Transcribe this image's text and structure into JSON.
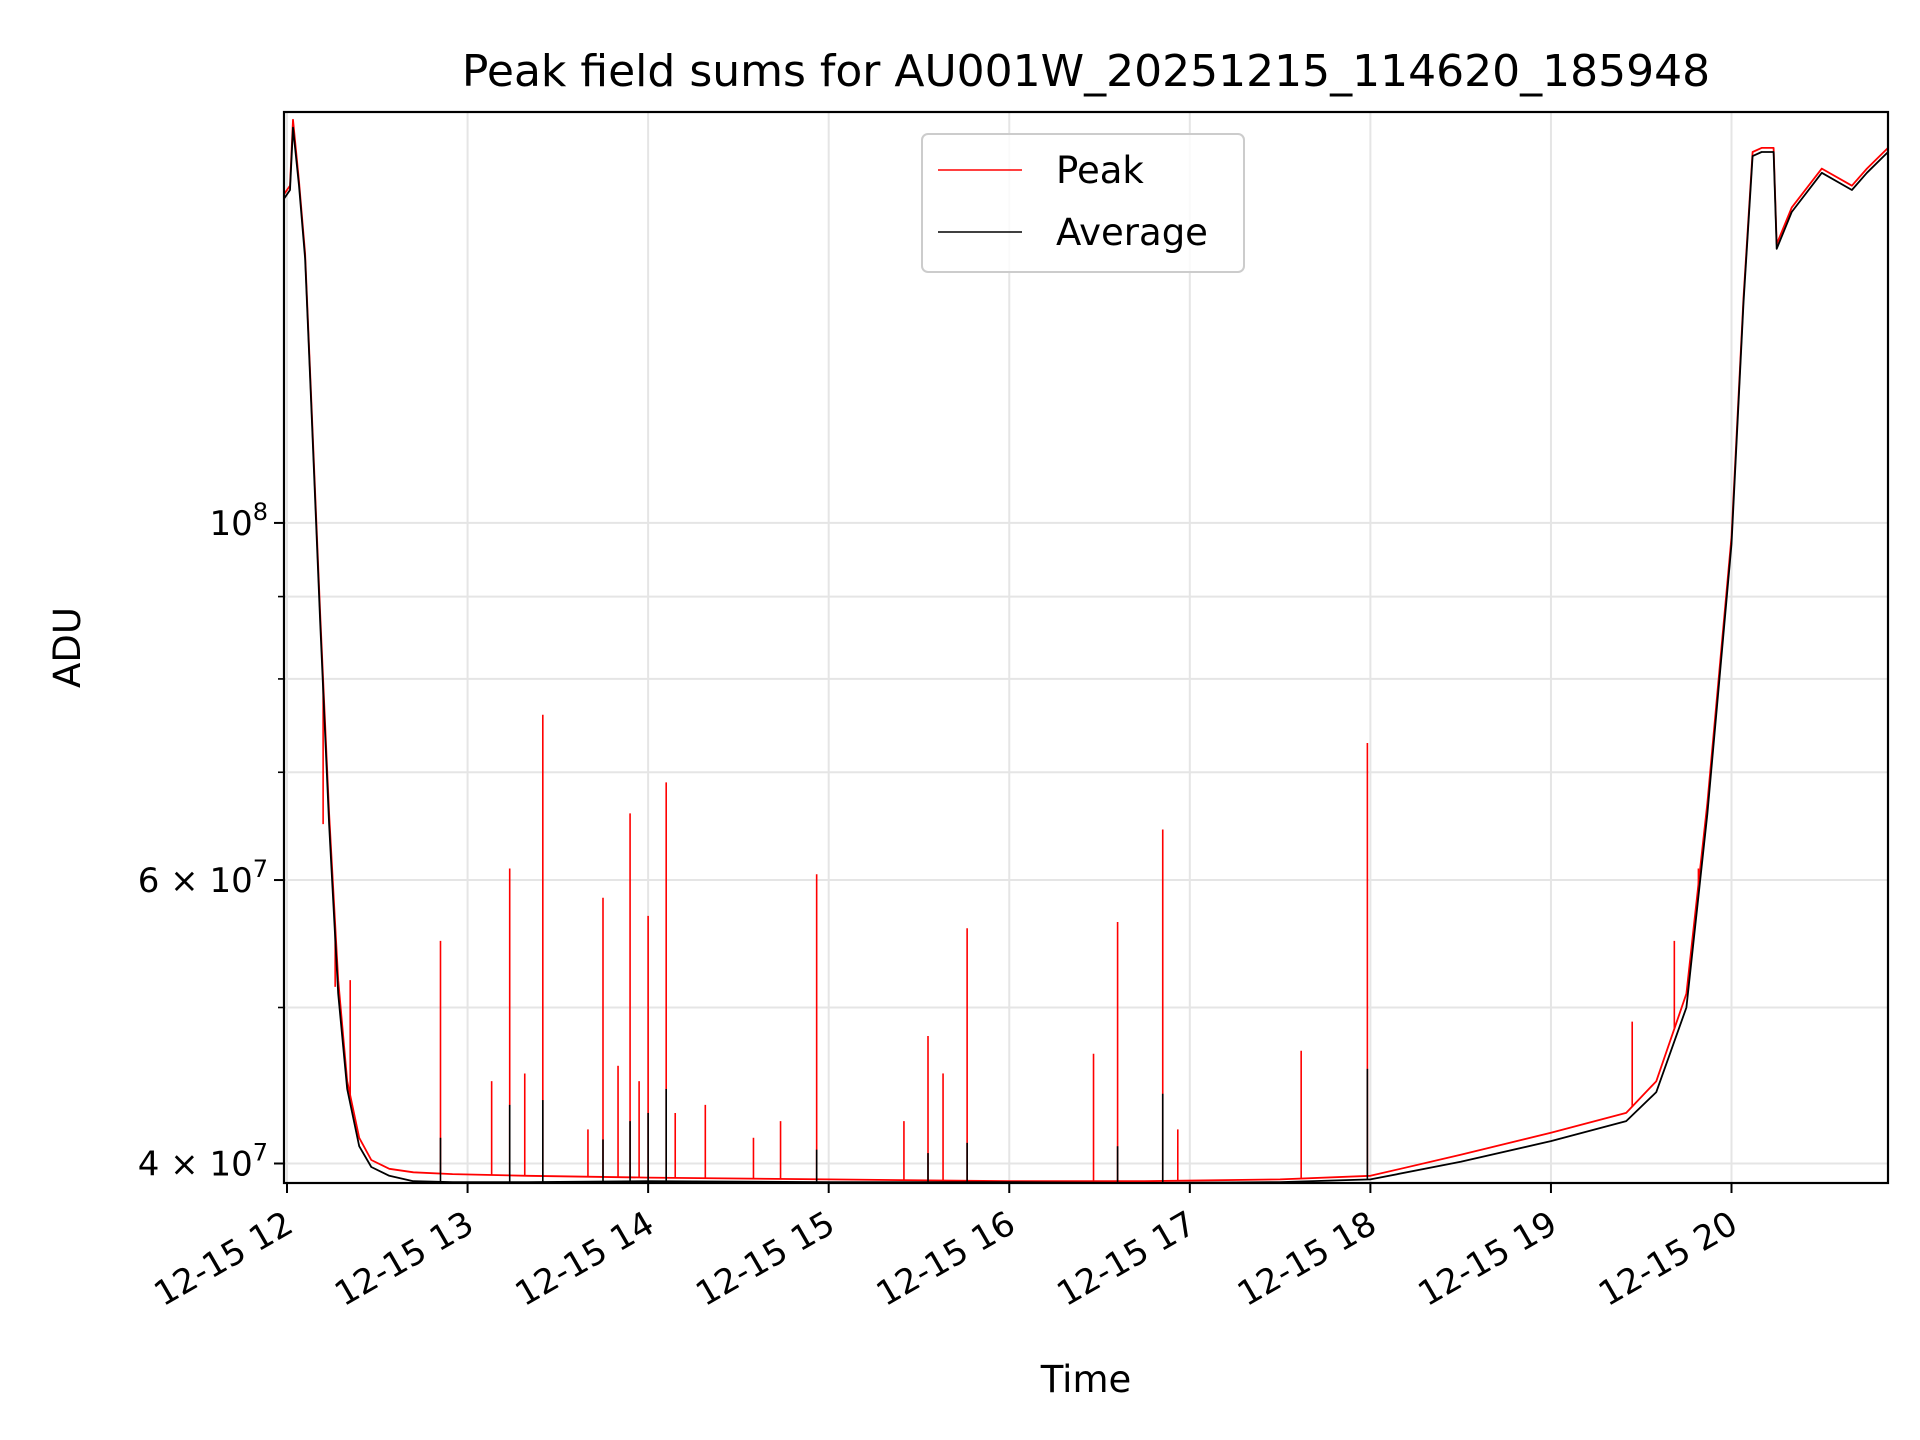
{
  "chart_data": {
    "type": "line",
    "title": "Peak field sums for AU001W_20251215_114620_185948",
    "xlabel": "Time",
    "ylabel": "ADU",
    "y_scale": "log",
    "grid": true,
    "legend_position": "top-center",
    "xlim": [
      "2025-12-15 11:59",
      "2025-12-15 20:52"
    ],
    "ylim": [
      38900000,
      180000000
    ],
    "x_ticks": [
      {
        "value": "2025-12-15 12:00",
        "label": "12-15 12"
      },
      {
        "value": "2025-12-15 13:00",
        "label": "12-15 13"
      },
      {
        "value": "2025-12-15 14:00",
        "label": "12-15 14"
      },
      {
        "value": "2025-12-15 15:00",
        "label": "12-15 15"
      },
      {
        "value": "2025-12-15 16:00",
        "label": "12-15 16"
      },
      {
        "value": "2025-12-15 17:00",
        "label": "12-15 17"
      },
      {
        "value": "2025-12-15 18:00",
        "label": "12-15 18"
      },
      {
        "value": "2025-12-15 19:00",
        "label": "12-15 19"
      },
      {
        "value": "2025-12-15 20:00",
        "label": "12-15 20"
      }
    ],
    "y_ticks": [
      {
        "value": 40000000,
        "base": "4",
        "exp": "7",
        "label": "4 × 10^7"
      },
      {
        "value": 60000000,
        "base": "6",
        "exp": "7",
        "label": "6 × 10^7"
      },
      {
        "value": 100000000,
        "base": "10",
        "exp": "8",
        "label": "10^8"
      }
    ],
    "y_minor_ticks": [
      50000000,
      70000000,
      80000000,
      90000000
    ],
    "series": [
      {
        "name": "Peak",
        "color": "#ff0000",
        "x": [
          "2025-12-15 11:59",
          "2025-12-15 12:01",
          "2025-12-15 12:02",
          "2025-12-15 12:04",
          "2025-12-15 12:06",
          "2025-12-15 12:08",
          "2025-12-15 12:11",
          "2025-12-15 12:14",
          "2025-12-15 12:17",
          "2025-12-15 12:20",
          "2025-12-15 12:24",
          "2025-12-15 12:28",
          "2025-12-15 12:34",
          "2025-12-15 12:42",
          "2025-12-15 12:55",
          "2025-12-15 13:20",
          "2025-12-15 14:00",
          "2025-12-15 15:00",
          "2025-12-15 16:00",
          "2025-12-15 16:45",
          "2025-12-15 17:30",
          "2025-12-15 18:00",
          "2025-12-15 18:30",
          "2025-12-15 19:00",
          "2025-12-15 19:25",
          "2025-12-15 19:35",
          "2025-12-15 19:45",
          "2025-12-15 19:52",
          "2025-12-15 20:00",
          "2025-12-15 20:04",
          "2025-12-15 20:07",
          "2025-12-15 20:10",
          "2025-12-15 20:14",
          "2025-12-15 20:15",
          "2025-12-15 20:20",
          "2025-12-15 20:30",
          "2025-12-15 20:40",
          "2025-12-15 20:45",
          "2025-12-15 20:52"
        ],
        "values": [
          160000000,
          162000000,
          178000000,
          163000000,
          147000000,
          120000000,
          88000000,
          66000000,
          52000000,
          45000000,
          41500000,
          40200000,
          39700000,
          39500000,
          39400000,
          39300000,
          39200000,
          39100000,
          39000000,
          39000000,
          39100000,
          39300000,
          40500000,
          41800000,
          43000000,
          45000000,
          51000000,
          67000000,
          98000000,
          138000000,
          170000000,
          171000000,
          171000000,
          149000000,
          157000000,
          166000000,
          162000000,
          166000000,
          171000000
        ],
        "spikes": [
          {
            "x": "2025-12-15 12:12",
            "y": 65000000
          },
          {
            "x": "2025-12-15 12:16",
            "y": 51500000
          },
          {
            "x": "2025-12-15 12:21",
            "y": 52000000
          },
          {
            "x": "2025-12-15 12:51",
            "y": 55000000
          },
          {
            "x": "2025-12-15 13:08",
            "y": 45000000
          },
          {
            "x": "2025-12-15 13:14",
            "y": 61000000
          },
          {
            "x": "2025-12-15 13:19",
            "y": 45500000
          },
          {
            "x": "2025-12-15 13:25",
            "y": 76000000
          },
          {
            "x": "2025-12-15 13:40",
            "y": 42000000
          },
          {
            "x": "2025-12-15 13:45",
            "y": 58500000
          },
          {
            "x": "2025-12-15 13:50",
            "y": 46000000
          },
          {
            "x": "2025-12-15 13:54",
            "y": 66000000
          },
          {
            "x": "2025-12-15 13:57",
            "y": 45000000
          },
          {
            "x": "2025-12-15 14:00",
            "y": 57000000
          },
          {
            "x": "2025-12-15 14:06",
            "y": 69000000
          },
          {
            "x": "2025-12-15 14:09",
            "y": 43000000
          },
          {
            "x": "2025-12-15 14:19",
            "y": 43500000
          },
          {
            "x": "2025-12-15 14:35",
            "y": 41500000
          },
          {
            "x": "2025-12-15 14:44",
            "y": 42500000
          },
          {
            "x": "2025-12-15 14:56",
            "y": 60500000
          },
          {
            "x": "2025-12-15 15:25",
            "y": 42500000
          },
          {
            "x": "2025-12-15 15:33",
            "y": 48000000
          },
          {
            "x": "2025-12-15 15:38",
            "y": 45500000
          },
          {
            "x": "2025-12-15 15:46",
            "y": 56000000
          },
          {
            "x": "2025-12-15 16:28",
            "y": 46800000
          },
          {
            "x": "2025-12-15 16:36",
            "y": 56500000
          },
          {
            "x": "2025-12-15 16:51",
            "y": 64500000
          },
          {
            "x": "2025-12-15 16:56",
            "y": 42000000
          },
          {
            "x": "2025-12-15 17:37",
            "y": 47000000
          },
          {
            "x": "2025-12-15 17:59",
            "y": 73000000
          },
          {
            "x": "2025-12-15 19:27",
            "y": 49000000
          },
          {
            "x": "2025-12-15 19:41",
            "y": 55000000
          },
          {
            "x": "2025-12-15 19:49",
            "y": 61000000
          }
        ]
      },
      {
        "name": "Average",
        "color": "#000000",
        "x": [
          "2025-12-15 11:59",
          "2025-12-15 12:01",
          "2025-12-15 12:02",
          "2025-12-15 12:04",
          "2025-12-15 12:06",
          "2025-12-15 12:08",
          "2025-12-15 12:11",
          "2025-12-15 12:14",
          "2025-12-15 12:17",
          "2025-12-15 12:20",
          "2025-12-15 12:24",
          "2025-12-15 12:28",
          "2025-12-15 12:34",
          "2025-12-15 12:42",
          "2025-12-15 12:55",
          "2025-12-15 13:20",
          "2025-12-15 14:00",
          "2025-12-15 15:00",
          "2025-12-15 16:00",
          "2025-12-15 16:45",
          "2025-12-15 17:30",
          "2025-12-15 18:00",
          "2025-12-15 18:30",
          "2025-12-15 19:00",
          "2025-12-15 19:25",
          "2025-12-15 19:35",
          "2025-12-15 19:45",
          "2025-12-15 19:52",
          "2025-12-15 20:00",
          "2025-12-15 20:04",
          "2025-12-15 20:07",
          "2025-12-15 20:10",
          "2025-12-15 20:14",
          "2025-12-15 20:15",
          "2025-12-15 20:20",
          "2025-12-15 20:30",
          "2025-12-15 20:40",
          "2025-12-15 20:45",
          "2025-12-15 20:52"
        ],
        "values": [
          159000000,
          161000000,
          176000000,
          162000000,
          146000000,
          119000000,
          87000000,
          65000000,
          51000000,
          44500000,
          41000000,
          39800000,
          39300000,
          39000000,
          38950000,
          38950000,
          39000000,
          38950000,
          38950000,
          38900000,
          38950000,
          39100000,
          40100000,
          41300000,
          42500000,
          44300000,
          50000000,
          66000000,
          97000000,
          137000000,
          169000000,
          170000000,
          170000000,
          148000000,
          156000000,
          165000000,
          161000000,
          165000000,
          170000000
        ],
        "spikes": [
          {
            "x": "2025-12-15 12:51",
            "y": 41500000
          },
          {
            "x": "2025-12-15 13:14",
            "y": 43500000
          },
          {
            "x": "2025-12-15 13:25",
            "y": 43800000
          },
          {
            "x": "2025-12-15 13:45",
            "y": 41400000
          },
          {
            "x": "2025-12-15 13:54",
            "y": 42500000
          },
          {
            "x": "2025-12-15 14:00",
            "y": 43000000
          },
          {
            "x": "2025-12-15 14:06",
            "y": 44500000
          },
          {
            "x": "2025-12-15 14:56",
            "y": 40800000
          },
          {
            "x": "2025-12-15 15:33",
            "y": 40600000
          },
          {
            "x": "2025-12-15 15:46",
            "y": 41200000
          },
          {
            "x": "2025-12-15 16:36",
            "y": 41000000
          },
          {
            "x": "2025-12-15 16:51",
            "y": 44200000
          },
          {
            "x": "2025-12-15 17:59",
            "y": 45800000
          }
        ]
      }
    ],
    "legend": [
      {
        "label": "Peak",
        "color": "#ff0000"
      },
      {
        "label": "Average",
        "color": "#000000"
      }
    ]
  }
}
